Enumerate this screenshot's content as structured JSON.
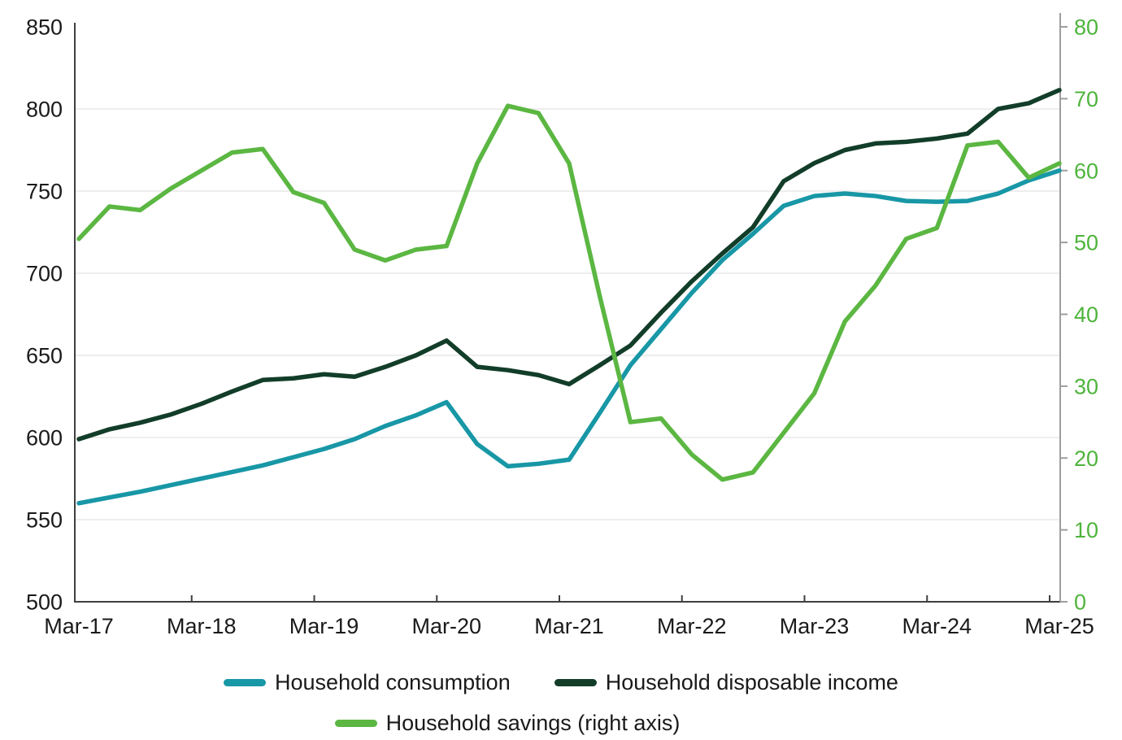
{
  "chart_data": {
    "type": "line",
    "x_categories": [
      "Mar-17",
      "Jun-17",
      "Sep-17",
      "Dec-17",
      "Mar-18",
      "Jun-18",
      "Sep-18",
      "Dec-18",
      "Mar-19",
      "Jun-19",
      "Sep-19",
      "Dec-19",
      "Mar-20",
      "Jun-20",
      "Sep-20",
      "Dec-20",
      "Mar-21",
      "Jun-21",
      "Sep-21",
      "Dec-21",
      "Mar-22",
      "Jun-22",
      "Sep-22",
      "Dec-22",
      "Mar-23",
      "Jun-23",
      "Sep-23",
      "Dec-23",
      "Mar-24",
      "Jun-24",
      "Sep-24",
      "Dec-24",
      "Mar-25"
    ],
    "x_axis_tick_labels": [
      "Mar-17",
      "Mar-18",
      "Mar-19",
      "Mar-20",
      "Mar-21",
      "Mar-22",
      "Mar-23",
      "Mar-24",
      "Mar-25"
    ],
    "left_axis": {
      "min": 500,
      "max": 850,
      "ticks": [
        500,
        550,
        600,
        650,
        700,
        750,
        800,
        850
      ],
      "label_color": "#1a1a1a"
    },
    "right_axis": {
      "min": 0,
      "max": 80,
      "ticks": [
        0,
        10,
        20,
        30,
        40,
        50,
        60,
        70,
        80
      ],
      "label_color": "#4eb43c"
    },
    "grid": "horizontal",
    "legend_position": "bottom",
    "series": [
      {
        "name": "Household consumption",
        "axis": "left",
        "color": "#1897a6",
        "values": [
          560,
          563.5,
          567,
          571,
          575,
          579,
          583,
          588,
          593,
          599,
          607,
          613.5,
          621.5,
          596,
          582.5,
          584,
          586.5,
          615,
          644,
          666,
          688,
          708,
          724,
          741,
          747,
          748.5,
          747,
          744,
          743.5,
          744,
          748.5,
          756.5,
          762.5
        ]
      },
      {
        "name": "Household disposable income",
        "axis": "left",
        "color": "#123d29",
        "values": [
          599,
          605,
          609,
          614,
          620.5,
          628,
          635,
          636,
          638.5,
          637,
          643,
          650,
          659,
          643,
          641,
          638,
          632.5,
          644,
          656,
          676,
          695,
          712,
          728,
          756,
          767,
          775,
          779,
          780,
          782,
          785,
          800,
          803.5,
          811.5
        ]
      },
      {
        "name": "Household savings (right axis)",
        "axis": "right",
        "color": "#5bb742",
        "values": [
          50.5,
          55,
          54.5,
          57.5,
          60,
          62.5,
          63,
          57,
          55.5,
          49,
          47.5,
          49,
          49.5,
          61,
          69,
          68,
          61,
          42.5,
          25,
          25.5,
          20.5,
          17,
          18,
          23.5,
          29,
          39,
          44,
          50.5,
          52,
          63.5,
          64,
          59,
          61
        ]
      }
    ]
  },
  "colors": {
    "background": "#ffffff",
    "gridline": "#e8e8e8",
    "axis": "#3f3f3f",
    "right_axis_line": "#9e9e9e",
    "tick_label": "#1a1a1a"
  }
}
